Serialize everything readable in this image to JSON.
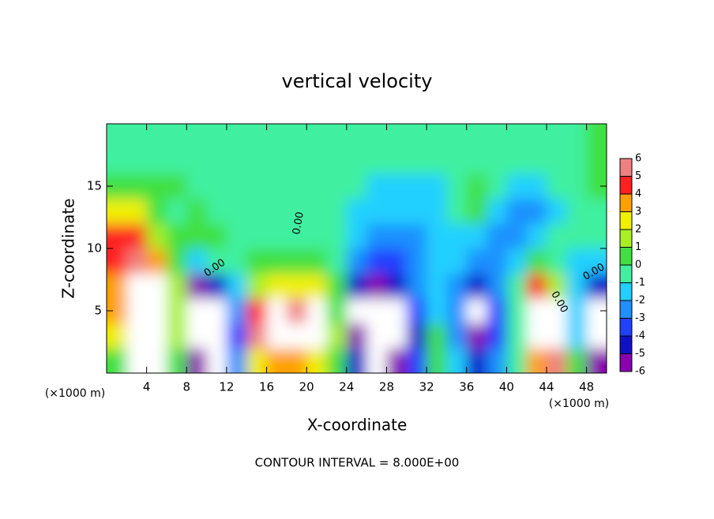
{
  "chart_data": {
    "type": "contour",
    "title": "vertical velocity",
    "x_label": "X-coordinate",
    "y_label": "Z-coordinate",
    "x_unit_left": "(×1000 m)",
    "x_unit_right": "(×1000 m)",
    "footer": "CONTOUR INTERVAL = 8.000E+00",
    "contour_label": "0.00",
    "xlim": [
      0,
      50
    ],
    "ylim": [
      0,
      20
    ],
    "xticks": [
      4,
      8,
      12,
      16,
      20,
      24,
      28,
      32,
      36,
      40,
      44,
      48
    ],
    "yticks": [
      5,
      10,
      15
    ],
    "x": [
      1,
      3,
      5,
      7,
      9,
      11,
      13,
      15,
      17,
      19,
      21,
      23,
      25,
      27,
      29,
      31,
      33,
      35,
      37,
      39,
      41,
      43,
      45,
      47,
      49
    ],
    "z": [
      1,
      3,
      5,
      7,
      9,
      11,
      13,
      15,
      17,
      19
    ],
    "values": [
      [
        1,
        8,
        8,
        1,
        -6,
        -8,
        -2,
        3,
        4,
        4,
        3,
        0.5,
        -4,
        -7,
        -5,
        -3,
        0.5,
        -1,
        -4,
        -2,
        0,
        4,
        6,
        1,
        -6
      ],
      [
        3,
        10,
        9,
        2,
        -8,
        -10,
        -3,
        6,
        9,
        7,
        9,
        2,
        -6,
        -9,
        -8,
        -4,
        1,
        -2,
        -5,
        -3,
        0,
        7,
        9,
        -1,
        -8
      ],
      [
        4,
        10,
        9,
        2,
        -8,
        -9,
        -2,
        5,
        7,
        6,
        7,
        1,
        -7,
        -9,
        -9,
        -3,
        -1,
        -2,
        -7,
        -3,
        0,
        9,
        7,
        -1,
        -7
      ],
      [
        4,
        10,
        8,
        2,
        -5,
        -4,
        -1,
        2,
        3,
        3,
        3,
        0.5,
        -4,
        -5,
        -4,
        -2,
        -1.5,
        -2,
        -4,
        -2,
        0,
        5,
        2,
        -1,
        -4
      ],
      [
        5,
        6,
        4,
        1,
        -1,
        0,
        0,
        0.5,
        1,
        1,
        1,
        0,
        -2,
        -3,
        -3,
        -2,
        -1.5,
        -1,
        -2,
        -2,
        -1,
        1,
        0,
        -1,
        -1
      ],
      [
        5,
        5,
        2,
        1,
        0.5,
        0.5,
        0,
        0,
        0,
        0,
        0,
        -0.5,
        -1.5,
        -2,
        -2,
        -2,
        -1.5,
        -1,
        -1,
        -2,
        -2,
        -1,
        -0.5,
        0,
        0
      ],
      [
        3,
        3,
        1,
        0,
        0.5,
        0,
        0,
        0,
        0,
        0,
        0,
        -0.5,
        -1,
        -1.5,
        -1.5,
        -1.5,
        -1,
        -0.5,
        0.5,
        -1,
        -2,
        -2,
        -1,
        0,
        0
      ],
      [
        1,
        1,
        1,
        0.5,
        0,
        0,
        0,
        0,
        0,
        0,
        0,
        -0.5,
        -0.5,
        -1,
        -1,
        -1,
        -1,
        -0.5,
        0.5,
        -0.5,
        -1,
        -1,
        -0.5,
        0,
        0.5
      ],
      [
        0,
        0,
        0,
        0,
        0,
        0,
        0,
        0,
        0,
        0,
        0,
        0,
        -0.5,
        -0.5,
        -0.5,
        -0.5,
        -0.5,
        -0.5,
        -0.5,
        0,
        0,
        0,
        0,
        0,
        0.5
      ],
      [
        0,
        0,
        0,
        0,
        0,
        0,
        0,
        0,
        0,
        0,
        0,
        0,
        -0.5,
        -0.5,
        -0.5,
        -0.5,
        -0.5,
        -0.5,
        -0.5,
        0,
        0,
        0,
        0,
        0,
        0.5
      ]
    ],
    "levels": [
      -6,
      -5,
      -4,
      -3,
      -2,
      -1,
      0,
      1,
      2,
      3,
      4,
      5,
      6
    ],
    "colors": [
      "#8a00b0",
      "#1010c8",
      "#2040ff",
      "#1e90ff",
      "#20d0ff",
      "#40f0a0",
      "#40e040",
      "#a8f020",
      "#f0f000",
      "#ffa000",
      "#ff2020",
      "#f08080"
    ],
    "over_color": "#ffffff"
  }
}
